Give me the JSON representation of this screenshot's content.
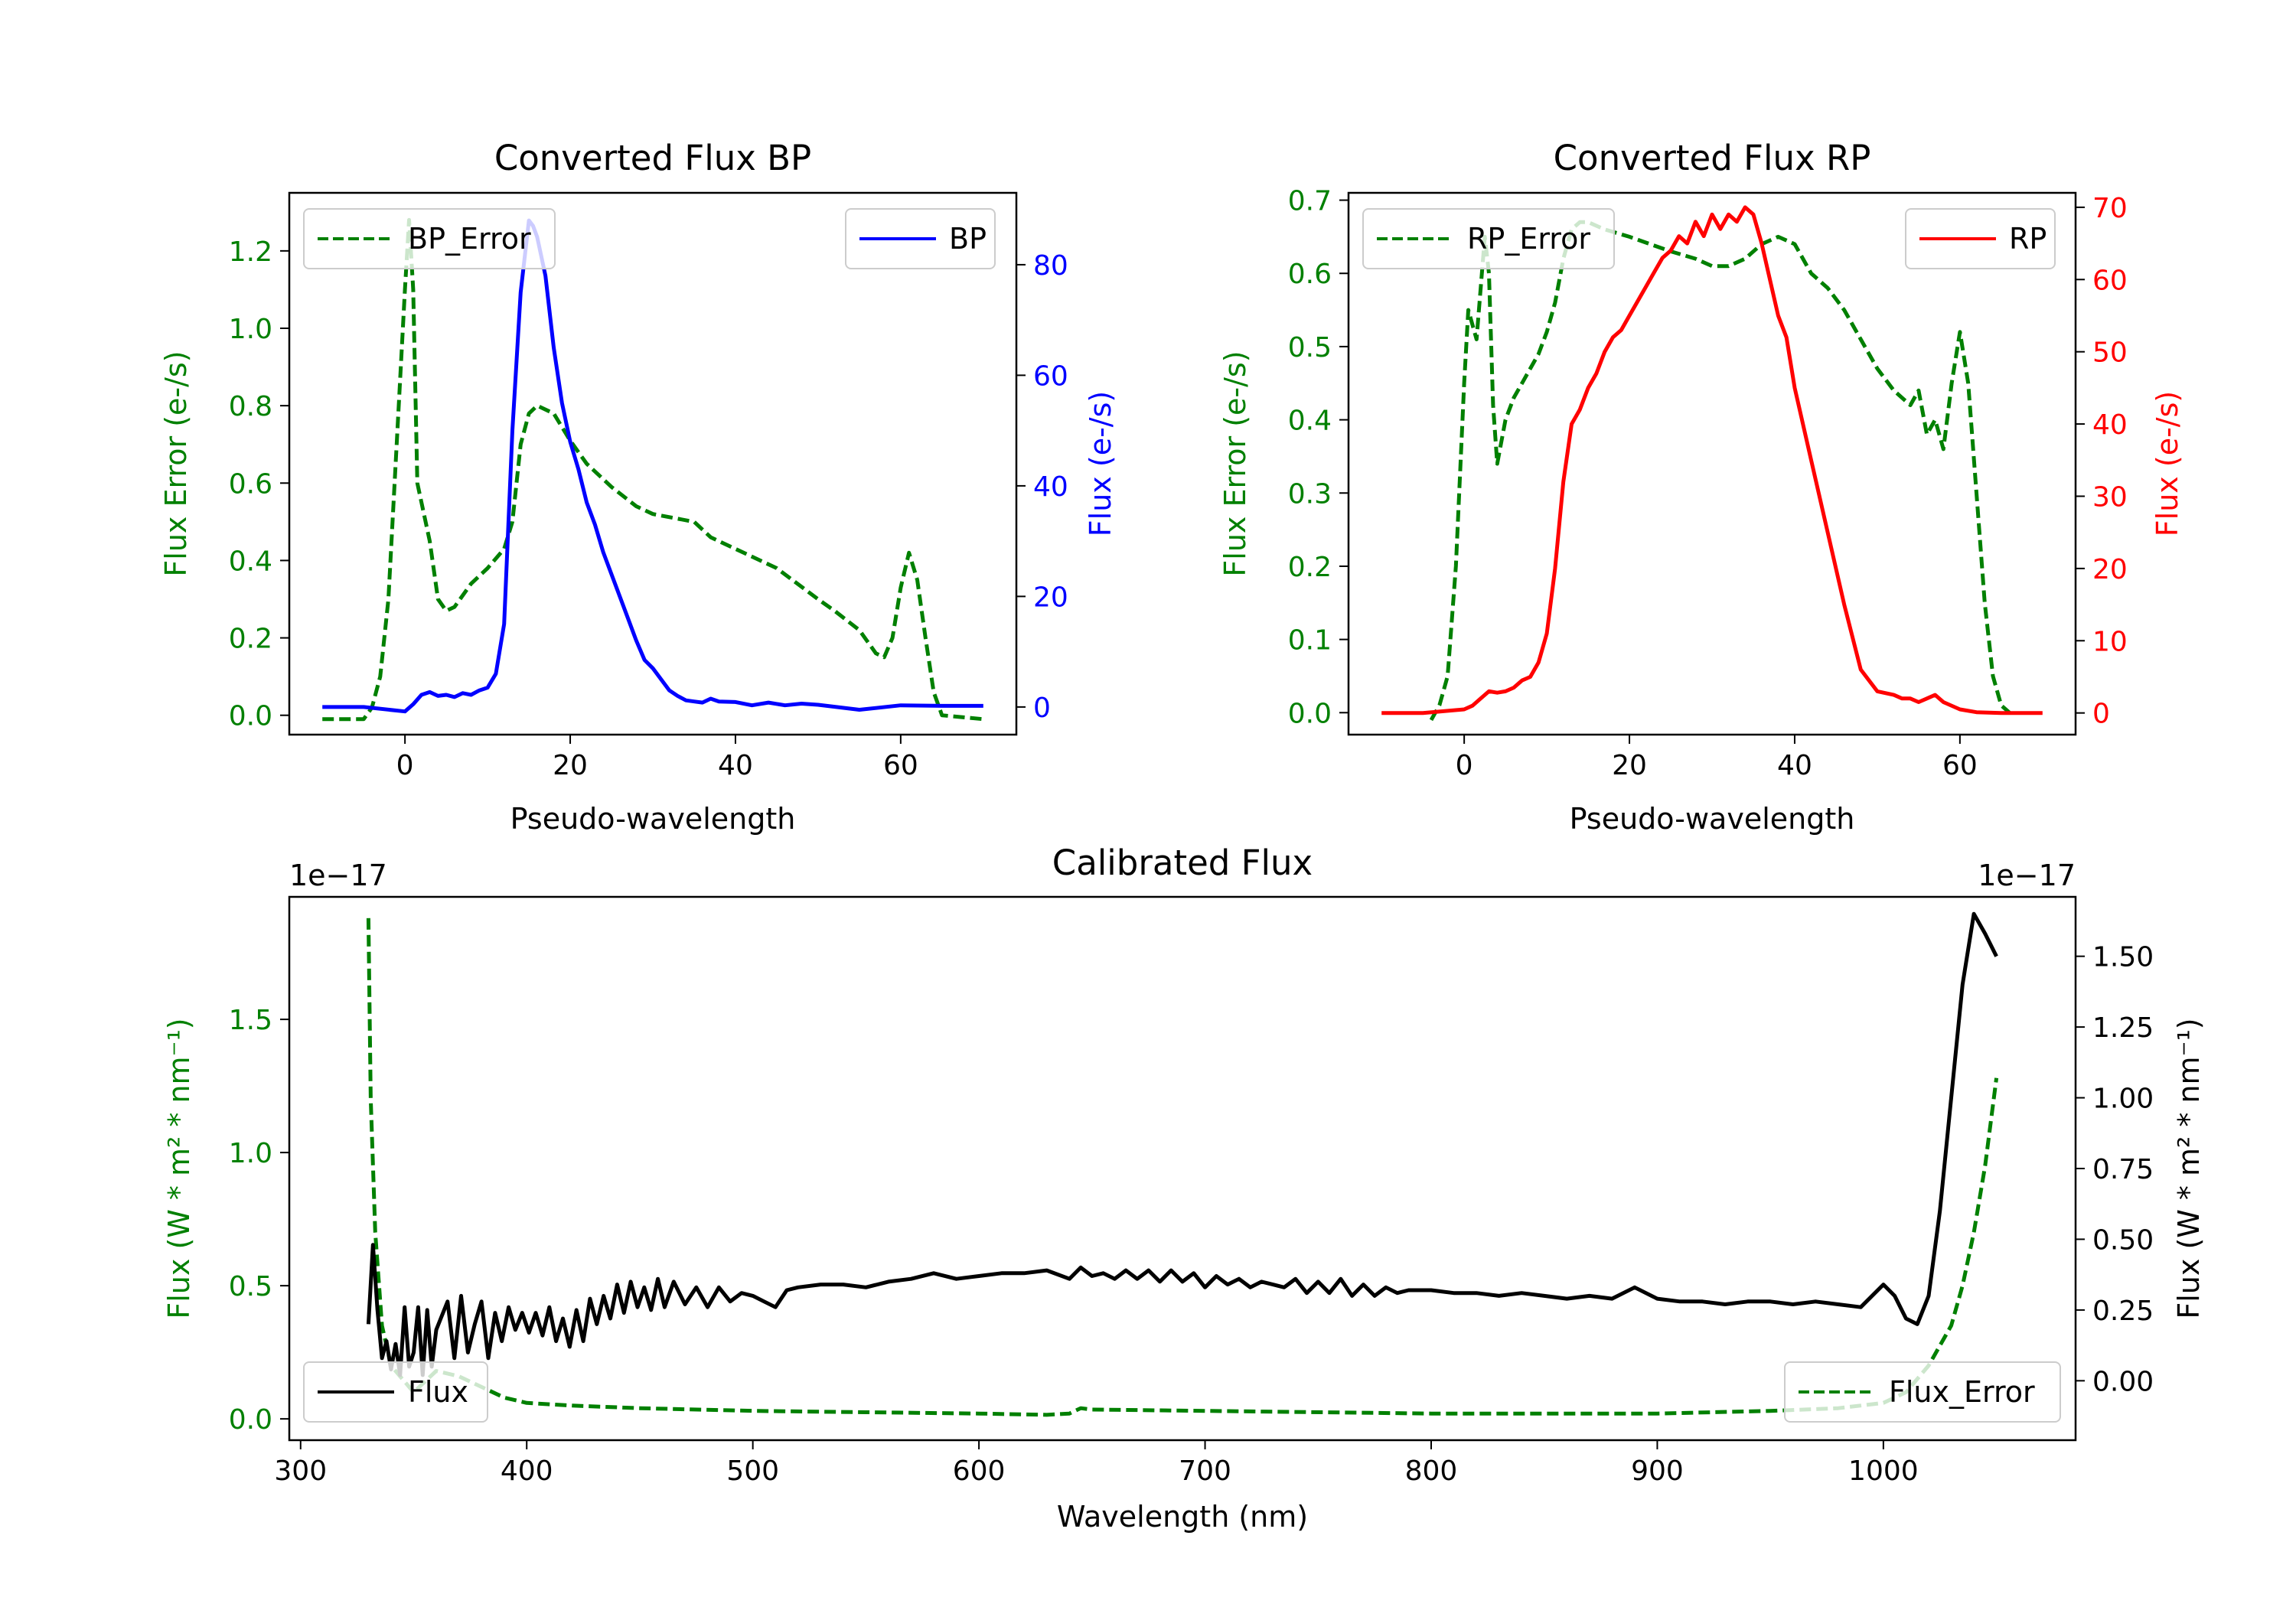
{
  "colors": {
    "bp": "#0000ff",
    "rp": "#ff0000",
    "error": "#008000",
    "flux": "#000000",
    "axis": "#000000"
  },
  "chart_data": [
    {
      "id": "bp",
      "type": "line",
      "title": "Converted Flux BP",
      "xlabel": "Pseudo-wavelength",
      "xlim": [
        -14,
        74
      ],
      "xticks": [
        0,
        20,
        40,
        60
      ],
      "ylabel_left": "Flux Error (e-/s)",
      "ylim_left": [
        -0.05,
        1.35
      ],
      "yticks_left": [
        0.0,
        0.2,
        0.4,
        0.6,
        0.8,
        1.0,
        1.2
      ],
      "ytick_labels_left": [
        "0.0",
        "0.2",
        "0.4",
        "0.6",
        "0.8",
        "1.0",
        "1.2"
      ],
      "ylabel_right": "Flux (e-/s)",
      "ylim_right": [
        -5,
        93
      ],
      "yticks_right": [
        0,
        20,
        40,
        60,
        80
      ],
      "ytick_labels_right": [
        "0",
        "20",
        "40",
        "60",
        "80"
      ],
      "legend_left": "BP_Error",
      "legend_right": "BP",
      "series": [
        {
          "name": "BP_Error",
          "axis": "left",
          "style": "dashed",
          "color": "#008000",
          "x": [
            -10,
            -5,
            -4,
            -3,
            -2,
            -1,
            0,
            0.5,
            1,
            1.5,
            2,
            3,
            4,
            5,
            6,
            8,
            10,
            12,
            13,
            14,
            15,
            16,
            18,
            20,
            22,
            25,
            28,
            30,
            35,
            37,
            40,
            45,
            50,
            52,
            55,
            57,
            58,
            59,
            60,
            61,
            62,
            63,
            64,
            65,
            70
          ],
          "y": [
            -0.01,
            -0.01,
            0.02,
            0.1,
            0.3,
            0.7,
            1.1,
            1.28,
            1.1,
            0.6,
            0.55,
            0.45,
            0.3,
            0.27,
            0.28,
            0.34,
            0.38,
            0.43,
            0.5,
            0.7,
            0.78,
            0.8,
            0.78,
            0.71,
            0.65,
            0.59,
            0.54,
            0.52,
            0.5,
            0.46,
            0.43,
            0.38,
            0.3,
            0.27,
            0.22,
            0.16,
            0.15,
            0.2,
            0.33,
            0.42,
            0.35,
            0.2,
            0.06,
            0.0,
            -0.01
          ]
        },
        {
          "name": "BP",
          "axis": "right",
          "style": "solid",
          "color": "#0000ff",
          "x": [
            -10,
            -5,
            0,
            1,
            2,
            3,
            4,
            5,
            6,
            7,
            8,
            9,
            10,
            11,
            12,
            13,
            14,
            15,
            15.5,
            16,
            17,
            18,
            19,
            20,
            21,
            22,
            23,
            24,
            25,
            26,
            27,
            28,
            29,
            30,
            31,
            32,
            33,
            34,
            35,
            36,
            37,
            38,
            40,
            42,
            44,
            46,
            48,
            50,
            55,
            60,
            65,
            70
          ],
          "y": [
            0,
            0,
            -0.8,
            0.5,
            2.2,
            2.7,
            2,
            2.2,
            1.8,
            2.5,
            2.2,
            3,
            3.5,
            6,
            15,
            50,
            75,
            88,
            87,
            85,
            78,
            65,
            55,
            48,
            43,
            37,
            33,
            28,
            24,
            20,
            16,
            12,
            8.5,
            7,
            5,
            3,
            2,
            1.2,
            1,
            0.8,
            1.5,
            1,
            0.9,
            0.3,
            0.8,
            0.3,
            0.6,
            0.4,
            -0.5,
            0.3,
            0.2,
            0.2
          ]
        }
      ]
    },
    {
      "id": "rp",
      "type": "line",
      "title": "Converted Flux RP",
      "xlabel": "Pseudo-wavelength",
      "xlim": [
        -14,
        74
      ],
      "xticks": [
        0,
        20,
        40,
        60
      ],
      "ylabel_left": "Flux Error (e-/s)",
      "ylim_left": [
        -0.03,
        0.71
      ],
      "yticks_left": [
        0.0,
        0.1,
        0.2,
        0.3,
        0.4,
        0.5,
        0.6,
        0.7
      ],
      "ytick_labels_left": [
        "0.0",
        "0.1",
        "0.2",
        "0.3",
        "0.4",
        "0.5",
        "0.6",
        "0.7"
      ],
      "ylabel_right": "Flux (e-/s)",
      "ylim_right": [
        -3,
        72
      ],
      "yticks_right": [
        0,
        10,
        20,
        30,
        40,
        50,
        60,
        70
      ],
      "ytick_labels_right": [
        "0",
        "10",
        "20",
        "30",
        "40",
        "50",
        "60",
        "70"
      ],
      "legend_left": "RP_Error",
      "legend_right": "RP",
      "series": [
        {
          "name": "RP_Error",
          "axis": "left",
          "style": "dashed",
          "color": "#008000",
          "x": [
            -4,
            -3,
            -2,
            -1,
            0,
            0.5,
            1,
            1.5,
            2,
            2.5,
            3,
            3.5,
            4,
            5,
            6,
            7,
            8,
            9,
            10,
            11,
            12,
            13,
            14,
            15,
            17,
            20,
            25,
            28,
            30,
            32,
            34,
            36,
            38,
            40,
            42,
            44,
            46,
            48,
            50,
            52,
            53,
            54,
            55,
            56,
            57,
            58,
            59,
            60,
            61,
            62,
            63,
            64,
            65,
            66
          ],
          "y": [
            -0.01,
            0.01,
            0.05,
            0.2,
            0.45,
            0.55,
            0.53,
            0.51,
            0.58,
            0.65,
            0.6,
            0.42,
            0.34,
            0.4,
            0.43,
            0.45,
            0.47,
            0.49,
            0.52,
            0.56,
            0.62,
            0.66,
            0.67,
            0.67,
            0.66,
            0.65,
            0.63,
            0.62,
            0.61,
            0.61,
            0.62,
            0.64,
            0.65,
            0.64,
            0.6,
            0.58,
            0.55,
            0.51,
            0.47,
            0.44,
            0.43,
            0.42,
            0.44,
            0.38,
            0.4,
            0.36,
            0.45,
            0.52,
            0.45,
            0.3,
            0.15,
            0.05,
            0.01,
            0.0
          ]
        },
        {
          "name": "RP",
          "axis": "right",
          "style": "solid",
          "color": "#ff0000",
          "x": [
            -10,
            -5,
            0,
            1,
            2,
            3,
            4,
            5,
            6,
            7,
            8,
            9,
            10,
            11,
            12,
            13,
            14,
            15,
            16,
            17,
            18,
            19,
            20,
            21,
            22,
            23,
            24,
            25,
            26,
            27,
            28,
            29,
            30,
            31,
            32,
            33,
            34,
            35,
            36,
            37,
            38,
            39,
            40,
            42,
            44,
            46,
            48,
            50,
            52,
            53,
            54,
            55,
            56,
            57,
            58,
            60,
            62,
            65,
            70
          ],
          "y": [
            0,
            0,
            0.5,
            1,
            2,
            3,
            2.8,
            3,
            3.5,
            4.5,
            5,
            7,
            11,
            20,
            32,
            40,
            42,
            45,
            47,
            50,
            52,
            53,
            55,
            57,
            59,
            61,
            63,
            64,
            66,
            65,
            68,
            66,
            69,
            67,
            69,
            68,
            70,
            69,
            65,
            60,
            55,
            52,
            45,
            35,
            25,
            15,
            6,
            3,
            2.5,
            2,
            2,
            1.5,
            2,
            2.5,
            1.5,
            0.5,
            0.1,
            0,
            0
          ]
        }
      ]
    },
    {
      "id": "calibrated",
      "type": "line",
      "title": "Calibrated Flux",
      "xlabel": "Wavelength (nm)",
      "xlim": [
        295,
        1085
      ],
      "xticks": [
        300,
        400,
        500,
        600,
        700,
        800,
        900,
        1000
      ],
      "ylabel_left": "Flux (W * m² * nm⁻¹)",
      "ylim_left": [
        -0.08,
        1.96
      ],
      "yticks_left": [
        0.0,
        0.5,
        1.0,
        1.5
      ],
      "ytick_labels_left": [
        "0.0",
        "0.5",
        "1.0",
        "1.5"
      ],
      "offset_left": "1e−17",
      "ylabel_right": "Flux (W * m² * nm⁻¹)",
      "ylim_right": [
        -0.21,
        1.71
      ],
      "yticks_right": [
        0.0,
        0.25,
        0.5,
        0.75,
        1.0,
        1.25,
        1.5
      ],
      "ytick_labels_right": [
        "0.00",
        "0.25",
        "0.50",
        "0.75",
        "1.00",
        "1.25",
        "1.50"
      ],
      "offset_right": "1e−17",
      "legend_left": "Flux",
      "legend_right": "Flux_Error",
      "series": [
        {
          "name": "Flux_Error",
          "axis": "left",
          "style": "dashed",
          "color": "#008000",
          "x": [
            330,
            331,
            333,
            336,
            340,
            345,
            350,
            360,
            370,
            380,
            390,
            400,
            420,
            450,
            500,
            550,
            600,
            630,
            640,
            645,
            650,
            700,
            800,
            900,
            950,
            980,
            1000,
            1010,
            1020,
            1030,
            1035,
            1040,
            1045,
            1050
          ],
          "y": [
            1.88,
            1.2,
            0.7,
            0.35,
            0.2,
            0.15,
            0.1,
            0.18,
            0.16,
            0.12,
            0.08,
            0.06,
            0.05,
            0.04,
            0.03,
            0.025,
            0.02,
            0.015,
            0.02,
            0.04,
            0.035,
            0.03,
            0.02,
            0.02,
            0.03,
            0.04,
            0.06,
            0.1,
            0.2,
            0.35,
            0.5,
            0.7,
            0.95,
            1.28
          ]
        },
        {
          "name": "Flux",
          "axis": "right",
          "style": "solid",
          "color": "#000000",
          "x": [
            330,
            332,
            334,
            336,
            338,
            340,
            342,
            344,
            346,
            348,
            350,
            352,
            354,
            356,
            358,
            360,
            362,
            365,
            368,
            371,
            374,
            377,
            380,
            383,
            386,
            389,
            392,
            395,
            398,
            401,
            404,
            407,
            410,
            413,
            416,
            419,
            422,
            425,
            428,
            431,
            434,
            437,
            440,
            443,
            446,
            449,
            452,
            455,
            458,
            461,
            465,
            470,
            475,
            480,
            485,
            490,
            495,
            500,
            505,
            510,
            515,
            520,
            530,
            540,
            550,
            560,
            570,
            580,
            590,
            600,
            610,
            620,
            630,
            640,
            645,
            650,
            655,
            660,
            665,
            670,
            675,
            680,
            685,
            690,
            695,
            700,
            705,
            710,
            715,
            720,
            725,
            730,
            735,
            740,
            745,
            750,
            755,
            760,
            765,
            770,
            775,
            780,
            785,
            790,
            800,
            810,
            820,
            830,
            840,
            850,
            860,
            870,
            880,
            890,
            900,
            910,
            920,
            930,
            940,
            950,
            960,
            970,
            980,
            990,
            1000,
            1005,
            1010,
            1015,
            1020,
            1025,
            1030,
            1035,
            1040,
            1045,
            1050
          ],
          "y": [
            0.2,
            0.48,
            0.25,
            0.08,
            0.14,
            0.04,
            0.13,
            0.02,
            0.26,
            0.05,
            0.1,
            0.26,
            0.02,
            0.25,
            0.05,
            0.18,
            0.22,
            0.28,
            0.08,
            0.3,
            0.1,
            0.2,
            0.28,
            0.08,
            0.24,
            0.14,
            0.26,
            0.18,
            0.24,
            0.17,
            0.24,
            0.16,
            0.26,
            0.14,
            0.22,
            0.12,
            0.25,
            0.14,
            0.29,
            0.2,
            0.3,
            0.22,
            0.34,
            0.24,
            0.35,
            0.26,
            0.33,
            0.25,
            0.36,
            0.26,
            0.35,
            0.27,
            0.33,
            0.26,
            0.33,
            0.28,
            0.31,
            0.3,
            0.28,
            0.26,
            0.32,
            0.33,
            0.34,
            0.34,
            0.33,
            0.35,
            0.36,
            0.38,
            0.36,
            0.37,
            0.38,
            0.38,
            0.39,
            0.36,
            0.4,
            0.37,
            0.38,
            0.36,
            0.39,
            0.36,
            0.39,
            0.35,
            0.39,
            0.35,
            0.38,
            0.33,
            0.37,
            0.34,
            0.36,
            0.33,
            0.35,
            0.34,
            0.33,
            0.36,
            0.31,
            0.35,
            0.31,
            0.36,
            0.3,
            0.34,
            0.3,
            0.33,
            0.31,
            0.32,
            0.32,
            0.31,
            0.31,
            0.3,
            0.31,
            0.3,
            0.29,
            0.3,
            0.29,
            0.33,
            0.29,
            0.28,
            0.28,
            0.27,
            0.28,
            0.28,
            0.27,
            0.28,
            0.27,
            0.26,
            0.34,
            0.3,
            0.22,
            0.2,
            0.3,
            0.6,
            1.0,
            1.4,
            1.65,
            1.58,
            1.5
          ]
        }
      ]
    }
  ]
}
